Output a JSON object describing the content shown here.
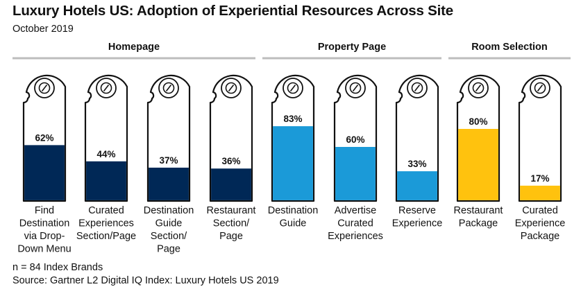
{
  "title": "Luxury Hotels US: Adoption of Experiential Resources Across Site",
  "subtitle": "October 2019",
  "note": "n = 84 Index Brands",
  "source": "Source: Gartner L2 Digital IQ Index: Luxury Hotels US 2019",
  "colors": {
    "homepage": "#002856",
    "property": "#1b9ad8",
    "room": "#ffc20e",
    "outline": "#111111",
    "group_rule": "#bdbdbd"
  },
  "chart_data": {
    "type": "bar",
    "ylim": [
      0,
      100
    ],
    "value_suffix": "%",
    "groups": [
      {
        "label": "Homepage",
        "color_key": "homepage",
        "bars": [
          {
            "label": [
              "Find",
              "Destination",
              "via Drop-",
              "Down Menu"
            ],
            "value": 62,
            "value_label": "62%"
          },
          {
            "label": [
              "Curated",
              "Experiences",
              "Section/Page"
            ],
            "value": 44,
            "value_label": "44%"
          },
          {
            "label": [
              "Destination",
              "Guide",
              "Section/",
              "Page"
            ],
            "value": 37,
            "value_label": "37%"
          },
          {
            "label": [
              "Restaurant",
              "Section/",
              "Page"
            ],
            "value": 36,
            "value_label": "36%"
          }
        ]
      },
      {
        "label": "Property Page",
        "color_key": "property",
        "bars": [
          {
            "label": [
              "Destination",
              "Guide"
            ],
            "value": 83,
            "value_label": "83%"
          },
          {
            "label": [
              "Advertise",
              "Curated",
              "Experiences"
            ],
            "value": 60,
            "value_label": "60%"
          },
          {
            "label": [
              "Reserve",
              "Experience"
            ],
            "value": 33,
            "value_label": "33%"
          }
        ]
      },
      {
        "label": "Room Selection",
        "color_key": "room",
        "bars": [
          {
            "label": [
              "Restaurant",
              "Package"
            ],
            "value": 80,
            "value_label": "80%"
          },
          {
            "label": [
              "Curated",
              "Experience",
              "Package"
            ],
            "value": 17,
            "value_label": "17%"
          }
        ]
      }
    ]
  }
}
